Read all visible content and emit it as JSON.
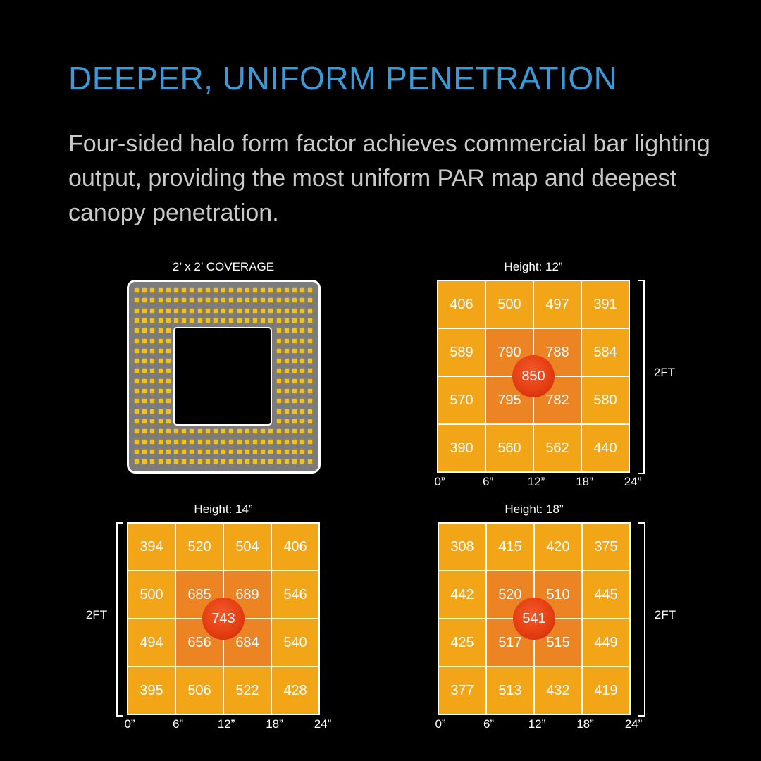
{
  "title": "DEEPER, UNIFORM PENETRATION",
  "description": "Four-sided halo form factor achieves commercial bar lighting output, providing the most uniform PAR map and deepest canopy penetration.",
  "coverage": {
    "label": "2’ x 2’ COVERAGE",
    "led_color": "#f0c21a",
    "panel_color": "#7b7b7b"
  },
  "colors": {
    "title": "#3A9BD8",
    "cell": "#F2A516",
    "cell_center": "#EC8423",
    "peak": "#e53f13"
  },
  "chart_data": [
    {
      "type": "heatmap",
      "title": "Height: 12”",
      "x_ticks": [
        "0”",
        "6”",
        "12”",
        "18”",
        "24”"
      ],
      "side_label": "2FT",
      "side": "right",
      "values": [
        [
          406,
          500,
          497,
          391
        ],
        [
          589,
          790,
          788,
          584
        ],
        [
          570,
          795,
          782,
          580
        ],
        [
          390,
          560,
          562,
          440
        ]
      ],
      "peak": 850
    },
    {
      "type": "heatmap",
      "title": "Height: 14”",
      "x_ticks": [
        "0”",
        "6”",
        "12”",
        "18”",
        "24”"
      ],
      "side_label": "2FT",
      "side": "left",
      "values": [
        [
          394,
          520,
          504,
          406
        ],
        [
          500,
          685,
          689,
          546
        ],
        [
          494,
          656,
          684,
          540
        ],
        [
          395,
          506,
          522,
          428
        ]
      ],
      "peak": 743
    },
    {
      "type": "heatmap",
      "title": "Height: 18”",
      "x_ticks": [
        "0”",
        "6”",
        "12”",
        "18”",
        "24”"
      ],
      "side_label": "2FT",
      "side": "right",
      "values": [
        [
          308,
          415,
          420,
          375
        ],
        [
          442,
          520,
          510,
          445
        ],
        [
          425,
          517,
          515,
          449
        ],
        [
          377,
          513,
          432,
          419
        ]
      ],
      "peak": 541
    }
  ]
}
